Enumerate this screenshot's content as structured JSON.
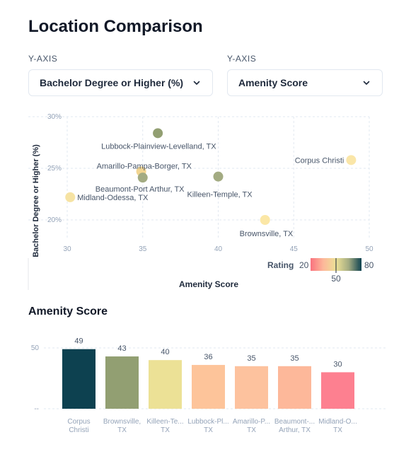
{
  "page": {
    "title": "Location Comparison",
    "y_axis_label_left": "Y-AXIS",
    "y_axis_label_right": "Y-AXIS",
    "select_left_value": "Bachelor Degree or Higher (%)",
    "select_right_value": "Amenity Score",
    "bar_section_title": "Amenity Score"
  },
  "chart_data": [
    {
      "type": "scatter",
      "xlabel": "Amenity Score",
      "ylabel": "Bachelor Degree or Higher (%)",
      "xlim": [
        30,
        50
      ],
      "ylim": [
        20,
        30
      ],
      "xticks": [
        "30",
        "35",
        "40",
        "45",
        "50"
      ],
      "yticks": [
        "30%",
        "25%",
        "20%"
      ],
      "grid": true,
      "points": [
        {
          "label": "Lubbock-Plainview-Levelland, TX",
          "x": 36,
          "y": 28.4,
          "color": "#929f72"
        },
        {
          "label": "Amarillo-Pampa-Borger, TX",
          "x": 34.9,
          "y": 24.7,
          "color": "#f2d591"
        },
        {
          "label": "Beaumont-Port Arthur, TX",
          "x": 35,
          "y": 24.1,
          "color": "#a3ab82"
        },
        {
          "label": "Killeen-Temple, TX",
          "x": 40,
          "y": 24.2,
          "color": "#a3ab82"
        },
        {
          "label": "Midland-Odessa, TX",
          "x": 30.2,
          "y": 22.2,
          "color": "#f6e3a3"
        },
        {
          "label": "Corpus Christi",
          "x": 48.8,
          "y": 25.8,
          "color": "#fae6a8"
        },
        {
          "label": "Brownsville, TX",
          "x": 43.1,
          "y": 20,
          "color": "#fbe7a6"
        }
      ],
      "legend": {
        "title": "Rating",
        "min_label": "20",
        "mid_label": "50",
        "max_label": "80",
        "colors": [
          "#f9737f",
          "#fdb89a",
          "#ece196",
          "#a3ab82",
          "#0d4150"
        ]
      }
    },
    {
      "type": "bar",
      "title": "Amenity Score",
      "categories": [
        "Corpus Christi",
        "Brownsville, TX",
        "Killeen-Temple, TX",
        "Lubbock-Plainview-Levelland, TX",
        "Amarillo-Pampa-Borger, TX",
        "Beaumont-Port Arthur, TX",
        "Midland-Odessa, TX"
      ],
      "tick_labels": [
        [
          "Corpus",
          "Christi"
        ],
        [
          "Brownsville,",
          "TX"
        ],
        [
          "Killeen-Te...",
          "TX"
        ],
        [
          "Lubbock-Pl...",
          "TX"
        ],
        [
          "Amarillo-P...",
          "TX"
        ],
        [
          "Beaumont-...",
          "Arthur, TX"
        ],
        [
          "Midland-O...",
          "TX"
        ]
      ],
      "values": [
        49,
        43,
        40,
        36,
        35,
        35,
        30
      ],
      "colors": [
        "#0d4150",
        "#929f72",
        "#ece196",
        "#fdc49a",
        "#fdc29e",
        "#fdb89a",
        "#fd8090"
      ],
      "ylim": [
        0,
        55
      ],
      "yticks": [
        "50",
        "--"
      ]
    }
  ]
}
